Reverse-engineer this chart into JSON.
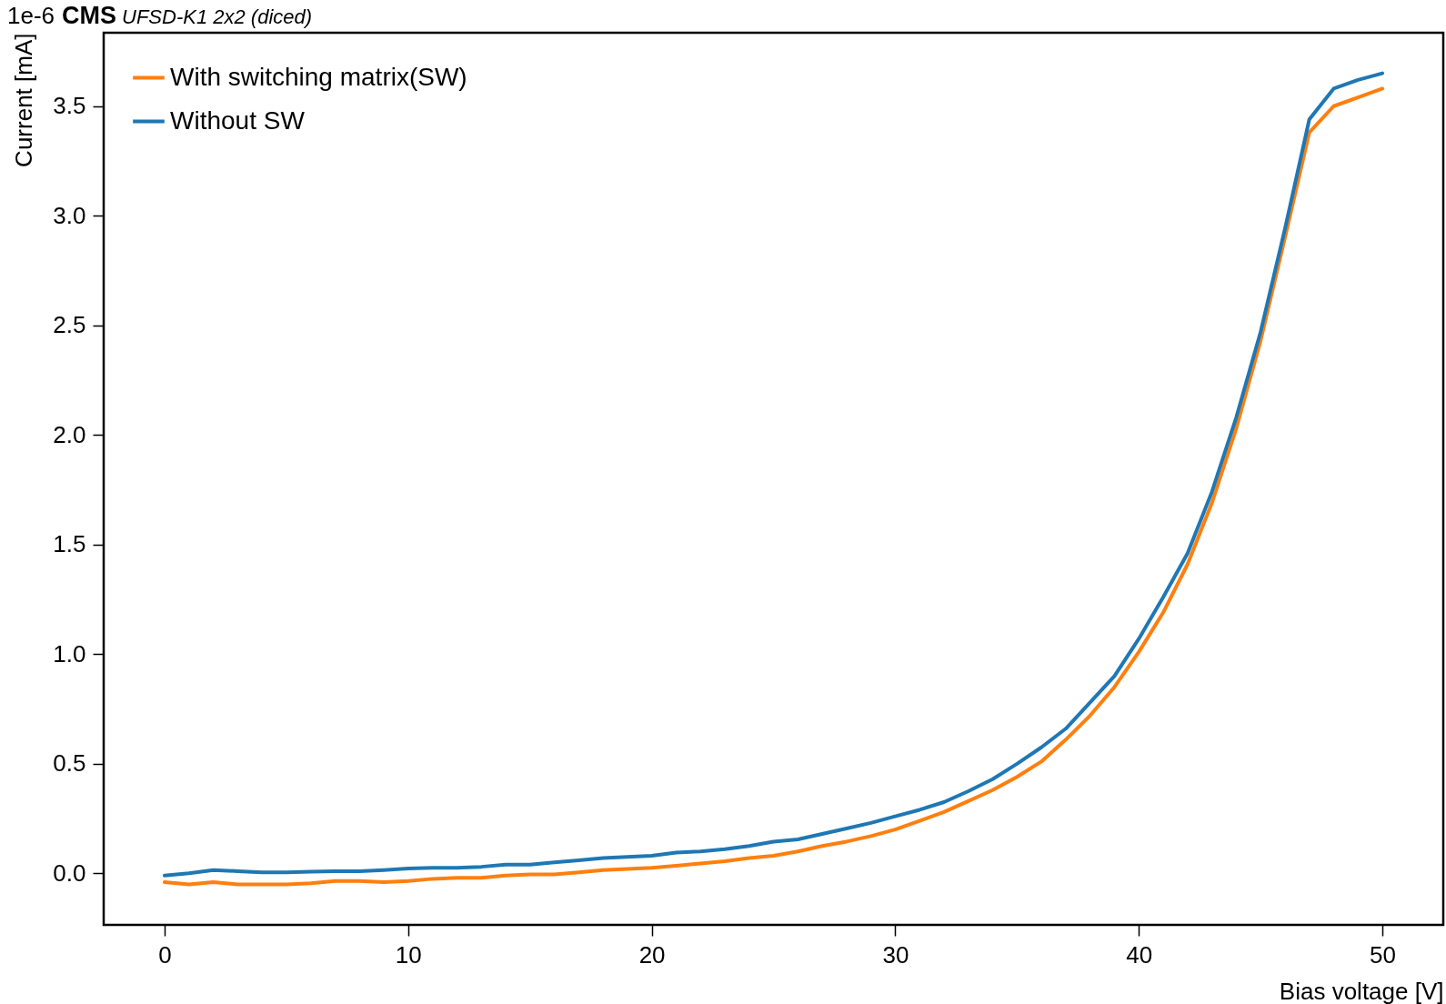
{
  "chart_data": {
    "type": "line",
    "title": "CMS",
    "subtitle": "UFSD-K1 2x2 (diced)",
    "annotations": [
      "1e-6"
    ],
    "xlabel": "Bias voltage [V]",
    "ylabel": "Current [mA]",
    "x": [
      0,
      1,
      2,
      3,
      4,
      5,
      6,
      7,
      8,
      9,
      10,
      11,
      12,
      13,
      14,
      15,
      16,
      17,
      18,
      19,
      20,
      21,
      22,
      23,
      24,
      25,
      26,
      27,
      28,
      29,
      30,
      31,
      32,
      33,
      34,
      35,
      36,
      37,
      38,
      39,
      40,
      41,
      42,
      43,
      44,
      45,
      46,
      47,
      48,
      49,
      50
    ],
    "series": [
      {
        "name": "With switching matrix(SW)",
        "color": "#ff7f0e",
        "values": [
          -0.04,
          -0.05,
          -0.04,
          -0.05,
          -0.05,
          -0.05,
          -0.045,
          -0.035,
          -0.035,
          -0.04,
          -0.035,
          -0.025,
          -0.02,
          -0.02,
          -0.01,
          -0.005,
          -0.005,
          0.005,
          0.015,
          0.02,
          0.025,
          0.035,
          0.045,
          0.055,
          0.07,
          0.08,
          0.1,
          0.125,
          0.145,
          0.17,
          0.2,
          0.24,
          0.28,
          0.33,
          0.38,
          0.44,
          0.51,
          0.61,
          0.72,
          0.85,
          1.01,
          1.19,
          1.41,
          1.69,
          2.03,
          2.43,
          2.9,
          3.38,
          3.5,
          3.54,
          3.58
        ]
      },
      {
        "name": "Without SW",
        "color": "#1f77b4",
        "values": [
          -0.01,
          0.0,
          0.015,
          0.01,
          0.005,
          0.005,
          0.008,
          0.01,
          0.01,
          0.015,
          0.022,
          0.025,
          0.025,
          0.03,
          0.04,
          0.04,
          0.05,
          0.06,
          0.07,
          0.075,
          0.08,
          0.095,
          0.1,
          0.11,
          0.125,
          0.145,
          0.155,
          0.18,
          0.205,
          0.23,
          0.26,
          0.29,
          0.325,
          0.375,
          0.43,
          0.5,
          0.575,
          0.66,
          0.78,
          0.9,
          1.07,
          1.26,
          1.46,
          1.74,
          2.08,
          2.47,
          2.94,
          3.44,
          3.58,
          3.62,
          3.65
        ]
      }
    ],
    "xlim": [
      -2.5,
      52.5
    ],
    "xticks": [
      0,
      10,
      20,
      30,
      40,
      50
    ],
    "ylim": [
      -0.235,
      3.835
    ],
    "yticks": [
      {
        "value": 0,
        "label": "0.0"
      },
      {
        "value": 0.5,
        "label": "0.5"
      },
      {
        "value": 1,
        "label": "1.0"
      },
      {
        "value": 1.5,
        "label": "1.5"
      },
      {
        "value": 2,
        "label": "2.0"
      },
      {
        "value": 2.5,
        "label": "2.5"
      },
      {
        "value": 3,
        "label": "3.0"
      },
      {
        "value": 3.5,
        "label": "3.5"
      }
    ],
    "grid": false,
    "legend": "top left",
    "marker": "none",
    "line_style": "solid"
  }
}
